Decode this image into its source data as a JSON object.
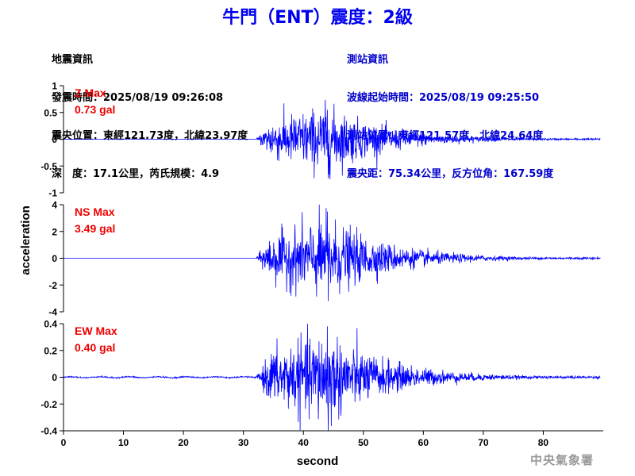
{
  "title": "牛門（ENT）震度：2級",
  "quake_info": {
    "heading": "地震資訊",
    "time": "發震時間：2025/08/19 09:26:08",
    "epicenter": "震央位置：東經121.73度，北緯23.97度",
    "depth_mag": "深　度：17.1公里，芮氏規模：4.9"
  },
  "station_info": {
    "heading": "測站資訊",
    "wave_start": "波線起始時間：2025/08/19 09:25:50",
    "location": "測站位置：東經121.57度，北緯24.64度",
    "distance": "震央距：75.34公里，反方位角：167.59度"
  },
  "credit": "中央氣象署",
  "colors": {
    "trace": "#0000ff",
    "max_label": "#ee0000",
    "title": "#0000ee"
  },
  "chart_data": {
    "type": "line",
    "xlabel": "second",
    "ylabel": "acceleration",
    "xlim": [
      0,
      90
    ],
    "x_ticks": [
      0,
      10,
      20,
      30,
      40,
      50,
      60,
      70,
      80
    ],
    "grid": false,
    "panels": [
      {
        "component": "Z",
        "max_label": "Z Max",
        "max_value": "0.73 gal",
        "ylim": [
          -1,
          1
        ],
        "y_ticks": [
          -1,
          -0.5,
          0,
          0.5,
          1
        ],
        "y_tick_labels": [
          "-1",
          "-0.5",
          "0",
          "0.5",
          "1"
        ],
        "onset_s": 32,
        "peak_time_s": 44,
        "peak_positive": 0.55,
        "peak_negative": -0.73,
        "pre_event_noise": 0.0
      },
      {
        "component": "NS",
        "max_label": "NS Max",
        "max_value": "3.49 gal",
        "ylim": [
          -4,
          4
        ],
        "y_ticks": [
          -4,
          -2,
          0,
          2,
          4
        ],
        "y_tick_labels": [
          "-4",
          "-2",
          "0",
          "2",
          "4"
        ],
        "onset_s": 32,
        "peak_time_s": 44,
        "peak_positive": 3.49,
        "peak_negative": -3.2,
        "pre_event_noise": 0.0
      },
      {
        "component": "EW",
        "max_label": "EW Max",
        "max_value": "0.40 gal",
        "ylim": [
          -0.4,
          0.4
        ],
        "y_ticks": [
          -0.4,
          -0.2,
          0,
          0.2,
          0.4
        ],
        "y_tick_labels": [
          "-0.4",
          "-0.2",
          "0",
          "0.2",
          "0.4"
        ],
        "onset_s": 32,
        "peak_time_s": 44,
        "peak_positive": 0.38,
        "peak_negative": -0.4,
        "pre_event_noise": 0.006
      }
    ]
  }
}
